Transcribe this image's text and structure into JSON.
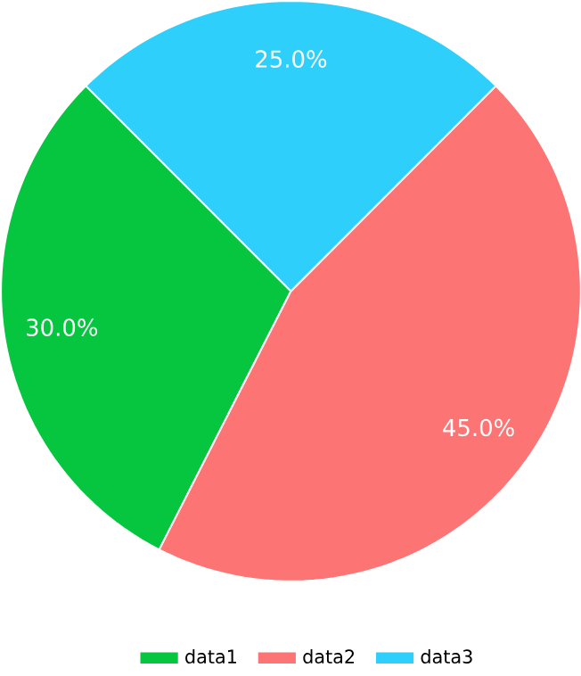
{
  "chart_data": {
    "type": "pie",
    "categories": [
      "data1",
      "data2",
      "data3"
    ],
    "values": [
      30,
      45,
      25
    ],
    "colors": [
      "#06c53e",
      "#fc7473",
      "#2ecffb"
    ],
    "value_labels": [
      "30.0%",
      "45.0%",
      "25.0%"
    ],
    "legend": "bottom"
  }
}
